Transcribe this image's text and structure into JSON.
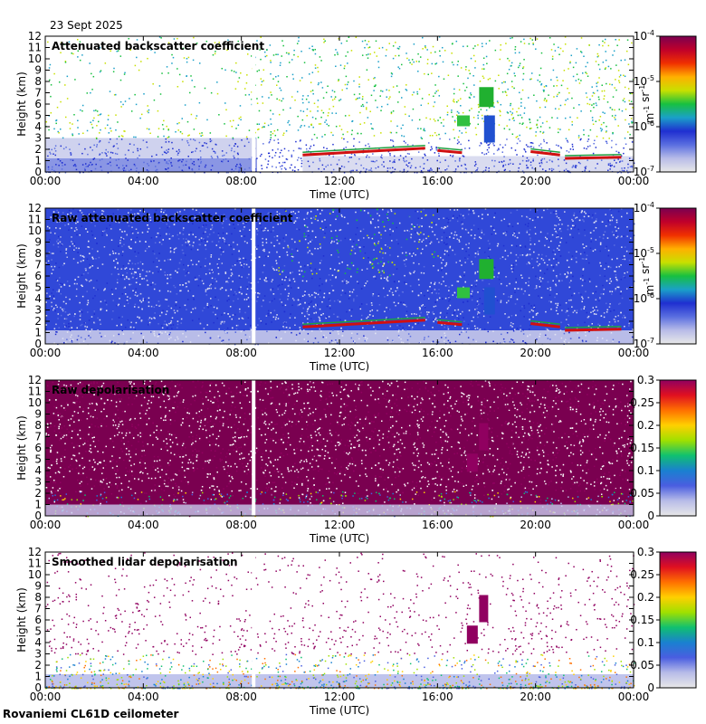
{
  "date": "23 Sept 2025",
  "footer": "Rovaniemi CL61D ceilometer",
  "colors": {
    "backscatter_scale": [
      "#e8e8e8",
      "#b8bce8",
      "#5a6ee0",
      "#1f2fd0",
      "#1aa0c8",
      "#17c040",
      "#c8e000",
      "#ffb000",
      "#f03000",
      "#c0002a",
      "#7a0050"
    ],
    "depol_scale": [
      "#e8e8e8",
      "#b8bce8",
      "#4a5ee0",
      "#1a80d0",
      "#10c070",
      "#a0e000",
      "#ffd000",
      "#ff7000",
      "#e01020",
      "#900060"
    ]
  },
  "chart_data": [
    {
      "type": "heatmap",
      "title": "Attenuated backscatter coefficient",
      "xlabel": "Time (UTC)",
      "ylabel": "Height (km)",
      "xticks": [
        "00:00",
        "04:00",
        "08:00",
        "12:00",
        "16:00",
        "20:00",
        "00:00"
      ],
      "yticks": [
        "0",
        "1",
        "2",
        "3",
        "4",
        "5",
        "6",
        "7",
        "8",
        "9",
        "10",
        "11",
        "12"
      ],
      "xlim_hours": [
        0,
        24
      ],
      "ylim": [
        0,
        12
      ],
      "colorbar": {
        "scale": "log",
        "ticks": [
          "10-7",
          "10-6",
          "10-5",
          "10-4"
        ],
        "unit": "m-1 sr-1"
      },
      "data_gap_hours": 8.5
    },
    {
      "type": "heatmap",
      "title": "Raw attenuated backscatter coefficient",
      "xlabel": "Time (UTC)",
      "ylabel": "Height (km)",
      "xticks": [
        "00:00",
        "04:00",
        "08:00",
        "12:00",
        "16:00",
        "20:00",
        "00:00"
      ],
      "yticks": [
        "0",
        "1",
        "2",
        "3",
        "4",
        "5",
        "6",
        "7",
        "8",
        "9",
        "10",
        "11",
        "12"
      ],
      "xlim_hours": [
        0,
        24
      ],
      "ylim": [
        0,
        12
      ],
      "colorbar": {
        "scale": "log",
        "ticks": [
          "10-7",
          "10-6",
          "10-5",
          "10-4"
        ],
        "unit": "m-1 sr-1"
      },
      "data_gap_hours": 8.5
    },
    {
      "type": "heatmap",
      "title": "Raw depolarisation",
      "xlabel": "Time (UTC)",
      "ylabel": "Height (km)",
      "xticks": [
        "00:00",
        "04:00",
        "08:00",
        "12:00",
        "16:00",
        "20:00",
        "00:00"
      ],
      "yticks": [
        "0",
        "1",
        "2",
        "3",
        "4",
        "5",
        "6",
        "7",
        "8",
        "9",
        "10",
        "11",
        "12"
      ],
      "xlim_hours": [
        0,
        24
      ],
      "ylim": [
        0,
        12
      ],
      "colorbar": {
        "scale": "linear",
        "ticks": [
          "0",
          "0.05",
          "0.1",
          "0.15",
          "0.2",
          "0.25",
          "0.3"
        ]
      },
      "data_gap_hours": 8.5
    },
    {
      "type": "heatmap",
      "title": "Smoothed lidar depolarisation",
      "xlabel": "Time (UTC)",
      "ylabel": "Height (km)",
      "xticks": [
        "00:00",
        "04:00",
        "08:00",
        "12:00",
        "16:00",
        "20:00",
        "00:00"
      ],
      "yticks": [
        "0",
        "1",
        "2",
        "3",
        "4",
        "5",
        "6",
        "7",
        "8",
        "9",
        "10",
        "11",
        "12"
      ],
      "xlim_hours": [
        0,
        24
      ],
      "ylim": [
        0,
        12
      ],
      "colorbar": {
        "scale": "linear",
        "ticks": [
          "0",
          "0.05",
          "0.1",
          "0.15",
          "0.2",
          "0.25",
          "0.3"
        ]
      },
      "data_gap_hours": 8.5
    }
  ]
}
